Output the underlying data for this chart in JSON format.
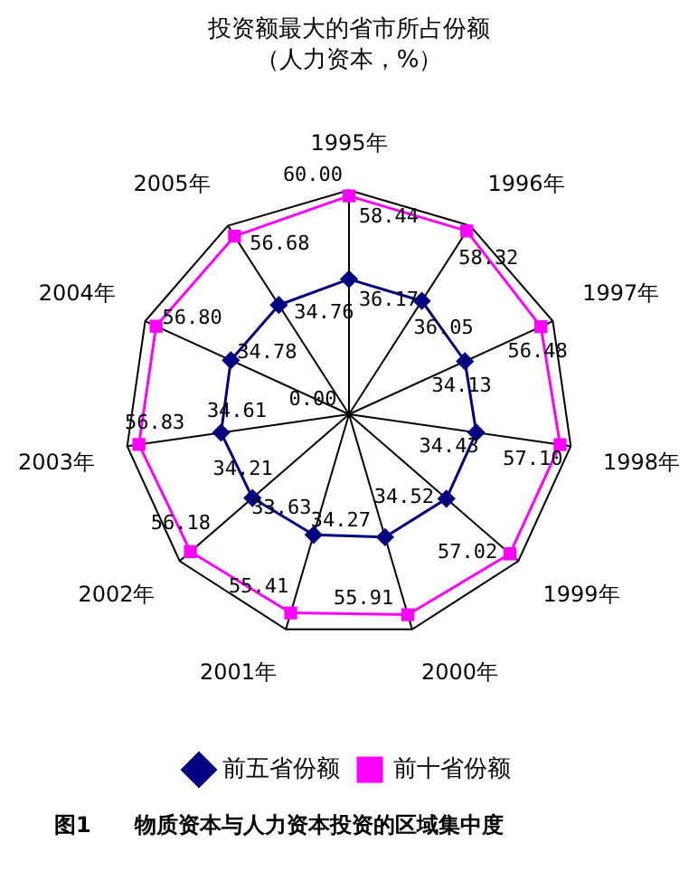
{
  "chart_data": {
    "type": "radar",
    "title": "投资额最大的省市所占份额",
    "subtitle": "（人力资本，%）",
    "categories": [
      "1995年",
      "1996年",
      "1997年",
      "1998年",
      "1999年",
      "2000年",
      "2001年",
      "2002年",
      "2003年",
      "2004年",
      "2005年"
    ],
    "series": [
      {
        "name": "前五省份额",
        "color": "#000080",
        "marker": "diamond",
        "values": [
          36.17,
          36.05,
          34.13,
          34.43,
          34.52,
          34.27,
          33.63,
          34.21,
          34.61,
          34.78,
          34.76
        ],
        "value_labels": [
          "36.17",
          "36.05",
          "34.13",
          "34.43",
          "34.52",
          "34.27",
          "33.63",
          "34.21",
          "34.61",
          "34.78",
          "34.76"
        ]
      },
      {
        "name": "前十省份额",
        "color": "#ff00ff",
        "marker": "square",
        "values": [
          58.44,
          58.32,
          56.48,
          57.1,
          57.02,
          55.91,
          55.41,
          56.18,
          56.83,
          56.8,
          56.68
        ],
        "value_labels": [
          "58.44",
          "58.32",
          "56.48",
          "57.10",
          "57.02",
          "55.91",
          "55.41",
          "56.18",
          "56.83",
          "56.80",
          "56.68"
        ]
      }
    ],
    "ylim": [
      0,
      60
    ],
    "yticks": [
      {
        "value": 0,
        "label": "0.00"
      },
      {
        "value": 60,
        "label": "60.00"
      }
    ],
    "grid": true,
    "legend": "bottom",
    "annotations": [
      "图1　　物质资本与人力资本投资的区域集中度"
    ]
  }
}
